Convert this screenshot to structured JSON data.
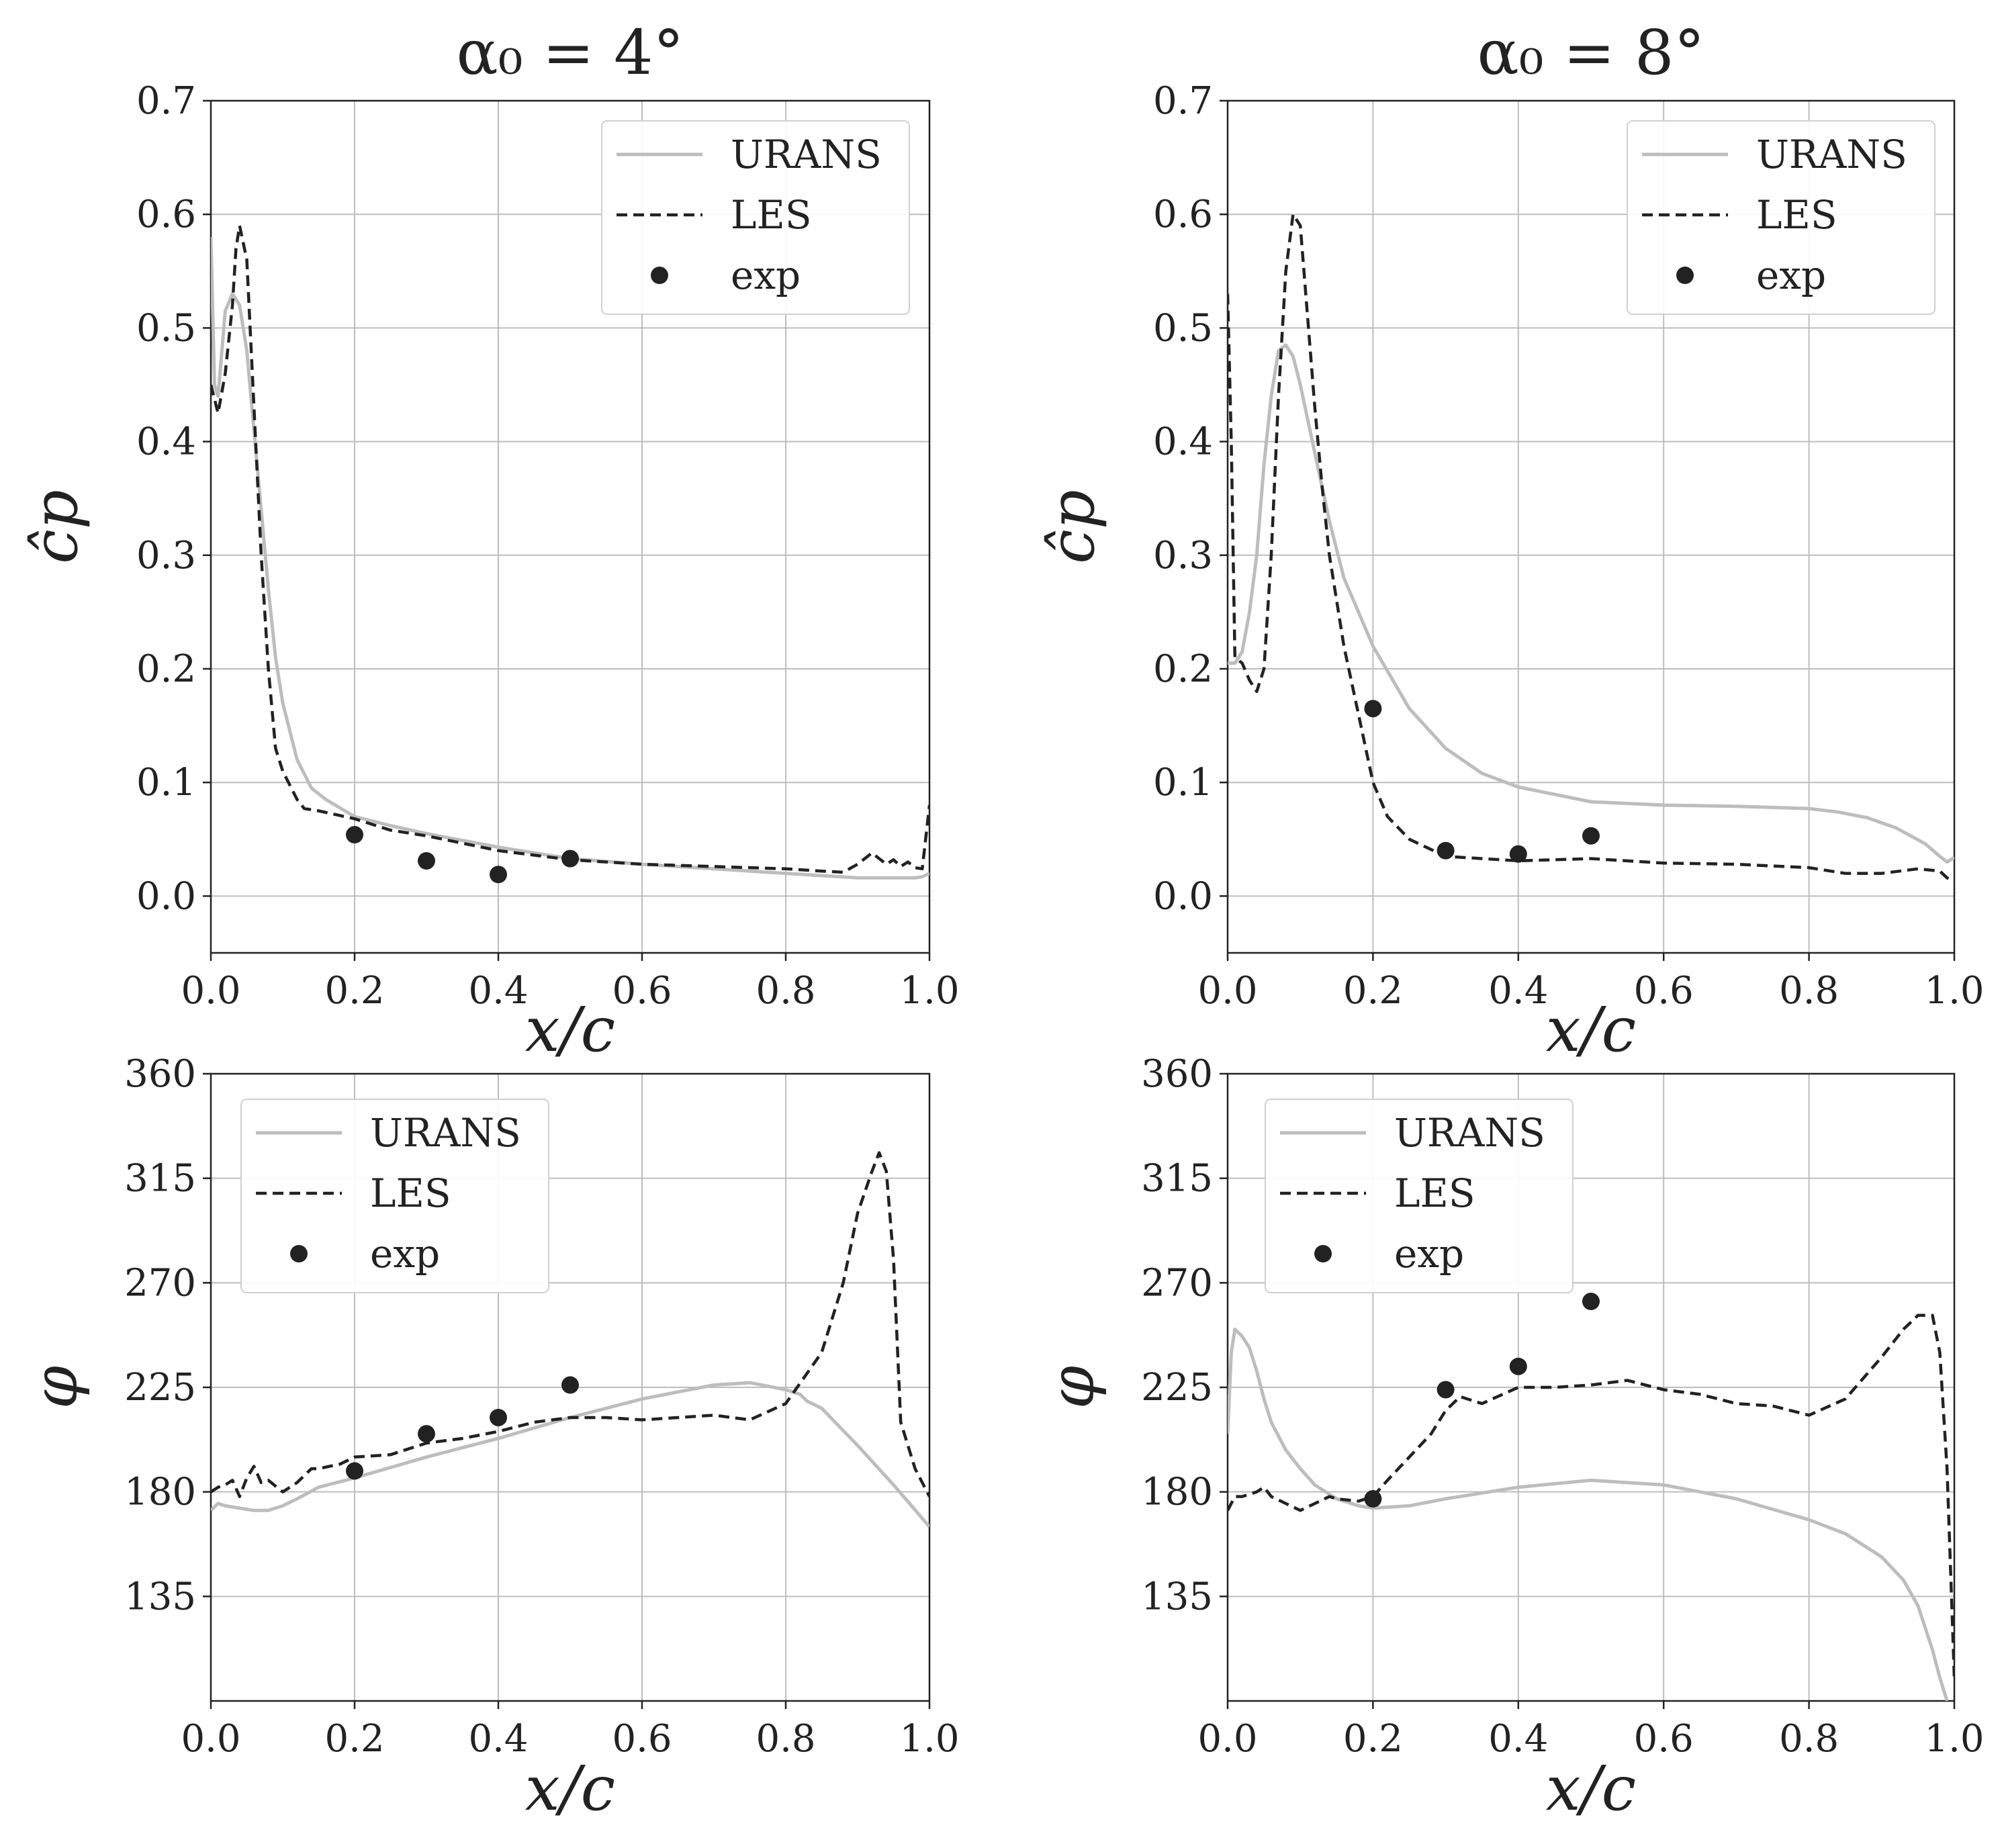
{
  "colors": {
    "urans": "#bdbdbd",
    "les": "#222222",
    "exp": "#222222",
    "grid": "#bdbdbd",
    "axis": "#222222"
  },
  "chart_data": [
    {
      "id": "cp-4",
      "type": "line",
      "title": "α₀ = 4°",
      "xlabel": "x/c",
      "ylabel": "ĉp",
      "xlim": [
        0,
        1
      ],
      "ylim": [
        -0.05,
        0.7
      ],
      "xticks": [
        0.0,
        0.2,
        0.4,
        0.6,
        0.8,
        1.0
      ],
      "xtick_labels": [
        "0.0",
        "0.2",
        "0.4",
        "0.6",
        "0.8",
        "1.0"
      ],
      "yticks": [
        0.0,
        0.1,
        0.2,
        0.3,
        0.4,
        0.5,
        0.6,
        0.7
      ],
      "ytick_labels": [
        "0.0",
        "0.1",
        "0.2",
        "0.3",
        "0.4",
        "0.5",
        "0.6",
        "0.7"
      ],
      "grid": true,
      "legend_position": "top-right",
      "series": [
        {
          "name": "URANS",
          "style": "solid-gray",
          "x": [
            0,
            0.005,
            0.01,
            0.02,
            0.03,
            0.04,
            0.05,
            0.06,
            0.07,
            0.08,
            0.09,
            0.1,
            0.12,
            0.14,
            0.16,
            0.2,
            0.25,
            0.3,
            0.4,
            0.5,
            0.6,
            0.7,
            0.8,
            0.9,
            0.95,
            0.98,
            0.99,
            1.0
          ],
          "y": [
            0.58,
            0.45,
            0.44,
            0.515,
            0.53,
            0.52,
            0.48,
            0.41,
            0.34,
            0.27,
            0.21,
            0.17,
            0.12,
            0.095,
            0.085,
            0.07,
            0.062,
            0.055,
            0.043,
            0.033,
            0.028,
            0.024,
            0.02,
            0.016,
            0.016,
            0.016,
            0.017,
            0.02
          ]
        },
        {
          "name": "LES",
          "style": "dashed-black",
          "x": [
            0,
            0.01,
            0.02,
            0.03,
            0.035,
            0.04,
            0.05,
            0.06,
            0.07,
            0.08,
            0.09,
            0.1,
            0.12,
            0.13,
            0.15,
            0.2,
            0.25,
            0.3,
            0.4,
            0.5,
            0.6,
            0.7,
            0.8,
            0.85,
            0.88,
            0.9,
            0.92,
            0.94,
            0.95,
            0.96,
            0.97,
            0.98,
            0.99,
            1.0
          ],
          "y": [
            0.45,
            0.425,
            0.46,
            0.52,
            0.57,
            0.59,
            0.56,
            0.43,
            0.3,
            0.2,
            0.13,
            0.11,
            0.085,
            0.077,
            0.075,
            0.068,
            0.058,
            0.053,
            0.04,
            0.032,
            0.028,
            0.026,
            0.024,
            0.022,
            0.021,
            0.028,
            0.038,
            0.028,
            0.032,
            0.026,
            0.03,
            0.025,
            0.024,
            0.08
          ]
        },
        {
          "name": "exp",
          "style": "marker",
          "x": [
            0.2,
            0.3,
            0.4,
            0.5
          ],
          "y": [
            0.054,
            0.031,
            0.019,
            0.033
          ]
        }
      ]
    },
    {
      "id": "cp-8",
      "type": "line",
      "title": "α₀ = 8°",
      "xlabel": "x/c",
      "ylabel": "ĉp",
      "xlim": [
        0,
        1
      ],
      "ylim": [
        -0.05,
        0.7
      ],
      "xticks": [
        0.0,
        0.2,
        0.4,
        0.6,
        0.8,
        1.0
      ],
      "xtick_labels": [
        "0.0",
        "0.2",
        "0.4",
        "0.6",
        "0.8",
        "1.0"
      ],
      "yticks": [
        0.0,
        0.1,
        0.2,
        0.3,
        0.4,
        0.5,
        0.6,
        0.7
      ],
      "ytick_labels": [
        "0.0",
        "0.1",
        "0.2",
        "0.3",
        "0.4",
        "0.5",
        "0.6",
        "0.7"
      ],
      "grid": true,
      "legend_position": "top-right",
      "series": [
        {
          "name": "URANS",
          "style": "solid-gray",
          "x": [
            0,
            0.01,
            0.02,
            0.03,
            0.04,
            0.05,
            0.06,
            0.07,
            0.08,
            0.09,
            0.1,
            0.11,
            0.12,
            0.14,
            0.16,
            0.18,
            0.2,
            0.25,
            0.3,
            0.35,
            0.4,
            0.5,
            0.6,
            0.7,
            0.8,
            0.84,
            0.88,
            0.92,
            0.96,
            0.98,
            0.99,
            1.0
          ],
          "y": [
            0.205,
            0.205,
            0.215,
            0.25,
            0.3,
            0.38,
            0.44,
            0.48,
            0.485,
            0.475,
            0.45,
            0.42,
            0.39,
            0.33,
            0.28,
            0.25,
            0.22,
            0.165,
            0.13,
            0.108,
            0.096,
            0.083,
            0.08,
            0.079,
            0.077,
            0.074,
            0.069,
            0.06,
            0.046,
            0.035,
            0.03,
            0.034
          ]
        },
        {
          "name": "LES",
          "style": "dashed-black",
          "x": [
            0,
            0.005,
            0.01,
            0.02,
            0.03,
            0.04,
            0.05,
            0.06,
            0.07,
            0.08,
            0.09,
            0.1,
            0.11,
            0.12,
            0.13,
            0.14,
            0.16,
            0.18,
            0.2,
            0.22,
            0.25,
            0.3,
            0.35,
            0.4,
            0.5,
            0.6,
            0.7,
            0.8,
            0.85,
            0.9,
            0.95,
            0.98,
            0.99,
            1.0
          ],
          "y": [
            0.53,
            0.4,
            0.21,
            0.205,
            0.19,
            0.18,
            0.2,
            0.3,
            0.44,
            0.55,
            0.6,
            0.59,
            0.51,
            0.43,
            0.36,
            0.3,
            0.22,
            0.16,
            0.1,
            0.07,
            0.05,
            0.035,
            0.033,
            0.031,
            0.033,
            0.029,
            0.028,
            0.025,
            0.02,
            0.02,
            0.024,
            0.022,
            0.016,
            0.013
          ]
        },
        {
          "name": "exp",
          "style": "marker",
          "x": [
            0.2,
            0.3,
            0.4,
            0.5
          ],
          "y": [
            0.165,
            0.04,
            0.037,
            0.053
          ]
        }
      ]
    },
    {
      "id": "phi-4",
      "type": "line",
      "title": "",
      "xlabel": "x/c",
      "ylabel": "φ",
      "xlim": [
        0,
        1
      ],
      "ylim": [
        90,
        360
      ],
      "xticks": [
        0.0,
        0.2,
        0.4,
        0.6,
        0.8,
        1.0
      ],
      "xtick_labels": [
        "0.0",
        "0.2",
        "0.4",
        "0.6",
        "0.8",
        "1.0"
      ],
      "yticks": [
        135,
        180,
        225,
        270,
        315,
        360
      ],
      "ytick_labels": [
        "135",
        "180",
        "225",
        "270",
        "315",
        "360"
      ],
      "grid": true,
      "legend_position": "top-left",
      "series": [
        {
          "name": "URANS",
          "style": "solid-gray",
          "x": [
            0,
            0.01,
            0.02,
            0.04,
            0.06,
            0.08,
            0.1,
            0.12,
            0.15,
            0.2,
            0.3,
            0.4,
            0.5,
            0.6,
            0.7,
            0.75,
            0.8,
            0.82,
            0.83,
            0.85,
            0.9,
            0.95,
            1.0
          ],
          "y": [
            172,
            175,
            174,
            173,
            172,
            172,
            174,
            177,
            182,
            186,
            195,
            203,
            212,
            220,
            226,
            227,
            224,
            222,
            219,
            216,
            200,
            183,
            165
          ]
        },
        {
          "name": "LES",
          "style": "dashed-black",
          "x": [
            0,
            0.01,
            0.02,
            0.03,
            0.04,
            0.05,
            0.06,
            0.07,
            0.08,
            0.1,
            0.12,
            0.14,
            0.15,
            0.18,
            0.2,
            0.25,
            0.3,
            0.35,
            0.4,
            0.45,
            0.5,
            0.55,
            0.6,
            0.65,
            0.7,
            0.75,
            0.8,
            0.85,
            0.88,
            0.9,
            0.92,
            0.93,
            0.94,
            0.95,
            0.96,
            0.97,
            0.98,
            1.0
          ],
          "y": [
            180,
            182,
            183,
            185,
            178,
            186,
            191,
            184,
            185,
            180,
            184,
            190,
            190,
            192,
            195,
            196,
            201,
            203,
            206,
            210,
            212,
            212,
            211,
            212,
            213,
            211,
            218,
            240,
            270,
            300,
            318,
            326,
            318,
            280,
            210,
            200,
            190,
            178
          ]
        },
        {
          "name": "exp",
          "style": "marker",
          "x": [
            0.2,
            0.3,
            0.4,
            0.5
          ],
          "y": [
            189,
            205,
            212,
            226
          ]
        }
      ]
    },
    {
      "id": "phi-8",
      "type": "line",
      "title": "",
      "xlabel": "x/c",
      "ylabel": "φ",
      "xlim": [
        0,
        1
      ],
      "ylim": [
        90,
        360
      ],
      "xticks": [
        0.0,
        0.2,
        0.4,
        0.6,
        0.8,
        1.0
      ],
      "xtick_labels": [
        "0.0",
        "0.2",
        "0.4",
        "0.6",
        "0.8",
        "1.0"
      ],
      "yticks": [
        135,
        180,
        225,
        270,
        315,
        360
      ],
      "ytick_labels": [
        "135",
        "180",
        "225",
        "270",
        "315",
        "360"
      ],
      "grid": true,
      "legend_position": "top-left",
      "series": [
        {
          "name": "URANS",
          "style": "solid-gray",
          "x": [
            0,
            0.005,
            0.01,
            0.02,
            0.03,
            0.04,
            0.05,
            0.06,
            0.08,
            0.1,
            0.12,
            0.15,
            0.18,
            0.2,
            0.25,
            0.3,
            0.4,
            0.5,
            0.6,
            0.7,
            0.8,
            0.85,
            0.9,
            0.93,
            0.95,
            0.97,
            0.98,
            0.99
          ],
          "y": [
            205,
            240,
            250,
            247,
            242,
            232,
            220,
            210,
            198,
            190,
            183,
            177,
            174,
            173,
            174,
            177,
            182,
            185,
            183,
            177,
            168,
            162,
            152,
            142,
            131,
            112,
            100,
            90
          ]
        },
        {
          "name": "LES",
          "style": "dashed-black",
          "x": [
            0,
            0.01,
            0.02,
            0.03,
            0.04,
            0.05,
            0.06,
            0.08,
            0.1,
            0.12,
            0.14,
            0.15,
            0.18,
            0.2,
            0.22,
            0.25,
            0.28,
            0.3,
            0.32,
            0.35,
            0.4,
            0.45,
            0.5,
            0.55,
            0.6,
            0.65,
            0.7,
            0.75,
            0.8,
            0.85,
            0.9,
            0.93,
            0.95,
            0.97,
            0.98,
            0.99,
            1.0
          ],
          "y": [
            172,
            178,
            178,
            179,
            180,
            182,
            178,
            175,
            172,
            175,
            178,
            177,
            176,
            178,
            185,
            195,
            205,
            215,
            221,
            218,
            225,
            225,
            226,
            228,
            224,
            222,
            218,
            217,
            213,
            220,
            238,
            250,
            256,
            256,
            240,
            190,
            100
          ]
        },
        {
          "name": "exp",
          "style": "marker",
          "x": [
            0.2,
            0.3,
            0.4,
            0.5
          ],
          "y": [
            177,
            224,
            234,
            262
          ]
        }
      ]
    }
  ]
}
